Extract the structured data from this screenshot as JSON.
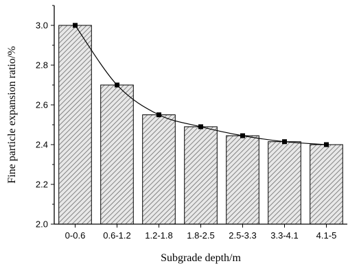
{
  "chart_data": {
    "type": "bar",
    "categories": [
      "0-0.6",
      "0.6-1.2",
      "1.2-1.8",
      "1.8-2.5",
      "2.5-3.3",
      "3.3-4.1",
      "4.1-5"
    ],
    "values": [
      3.0,
      2.7,
      2.55,
      2.49,
      2.445,
      2.415,
      2.4
    ],
    "overlay": {
      "type": "line",
      "markers": "square",
      "smooth": true
    },
    "title": "",
    "xlabel": "Subgrade depth/m",
    "ylabel": "Fine particle expansion ratio/%",
    "ylim": [
      2.0,
      3.1
    ],
    "yticks": [
      2.0,
      2.2,
      2.4,
      2.6,
      2.8,
      3.0
    ],
    "ytick_labels": [
      "2.0",
      "2.2",
      "2.4",
      "2.6",
      "2.8",
      "3.0"
    ],
    "bar_fill": "diagonal-hatch",
    "grid": false,
    "legend": "none"
  }
}
